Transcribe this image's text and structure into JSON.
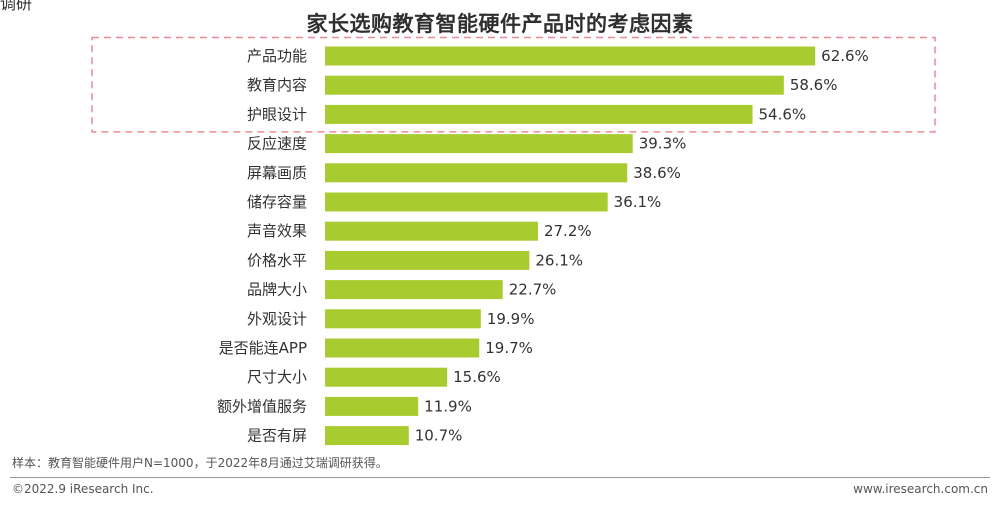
{
  "header": {
    "top_fragment": "调研"
  },
  "chart_data": {
    "type": "bar",
    "orientation": "horizontal",
    "title": "家长选购教育智能硬件产品时的考虑因素",
    "categories": [
      "产品功能",
      "教育内容",
      "护眼设计",
      "反应速度",
      "屏幕画质",
      "储存容量",
      "声音效果",
      "价格水平",
      "品牌大小",
      "外观设计",
      "是否能连APP",
      "尺寸大小",
      "额外增值服务",
      "是否有屏"
    ],
    "values": [
      62.6,
      58.6,
      54.6,
      39.3,
      38.6,
      36.1,
      27.2,
      26.1,
      22.7,
      19.9,
      19.7,
      15.6,
      11.9,
      10.7
    ],
    "value_labels": [
      "62.6%",
      "58.6%",
      "54.6%",
      "39.3%",
      "38.6%",
      "36.1%",
      "27.2%",
      "26.1%",
      "22.7%",
      "19.9%",
      "19.7%",
      "15.6%",
      "11.9%",
      "10.7%"
    ],
    "unit": "%",
    "xlim": [
      0,
      100
    ],
    "grid": false,
    "bar_color": "#a8cb2f",
    "highlight_color": "#e98b96",
    "highlighted_categories": [
      "产品功能",
      "教育内容",
      "护眼设计"
    ]
  },
  "footer": {
    "note": "样本：教育智能硬件用户N=1000，于2022年8月通过艾瑞调研获得。",
    "copyright": "©2022.9 iResearch Inc.",
    "url": "www.iresearch.com.cn"
  }
}
